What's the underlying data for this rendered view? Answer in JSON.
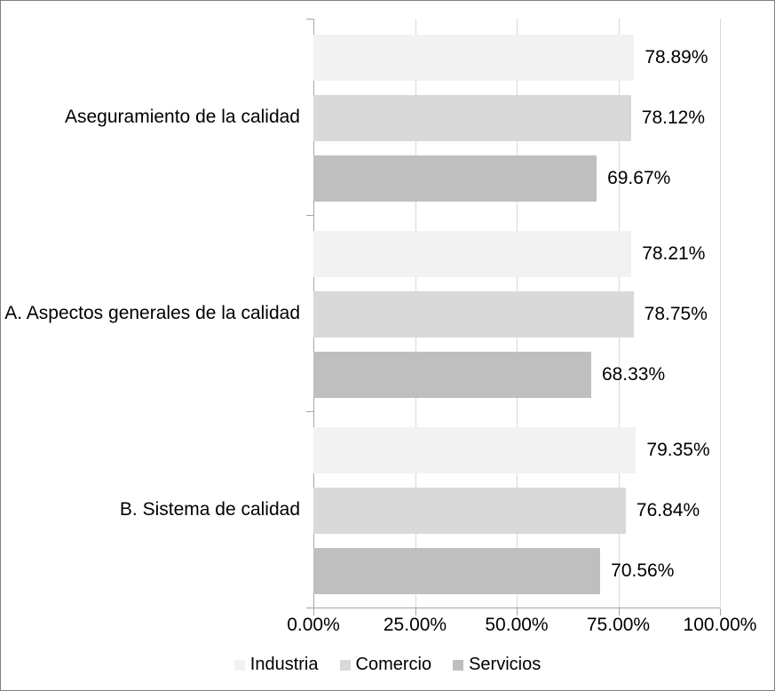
{
  "chart_data": {
    "type": "bar",
    "orientation": "horizontal",
    "title": "",
    "xlabel": "",
    "ylabel": "",
    "xlim": [
      0,
      100
    ],
    "grid": true,
    "legend_position": "bottom",
    "categories": [
      "Aseguramiento de la calidad",
      "A. Aspectos generales de la calidad",
      "B. Sistema de calidad"
    ],
    "series": [
      {
        "name": "Industria",
        "color": "#f2f2f2",
        "values": [
          78.89,
          78.21,
          79.35
        ]
      },
      {
        "name": "Comercio",
        "color": "#d9d9d9",
        "values": [
          78.12,
          78.75,
          76.84
        ]
      },
      {
        "name": "Servicios",
        "color": "#bfbfbf",
        "values": [
          69.67,
          68.33,
          70.56
        ]
      }
    ],
    "value_labels": [
      [
        "78.89%",
        "78.12%",
        "69.67%"
      ],
      [
        "78.21%",
        "78.75%",
        "68.33%"
      ],
      [
        "79.35%",
        "76.84%",
        "70.56%"
      ]
    ],
    "x_ticks": [
      "0.00%",
      "25.00%",
      "50.00%",
      "75.00%",
      "100.00%"
    ]
  },
  "colors": {
    "axis": "#a6a6a6",
    "gridline": "#d9d9d9",
    "frame_border": "#808080",
    "text": "#000000"
  }
}
